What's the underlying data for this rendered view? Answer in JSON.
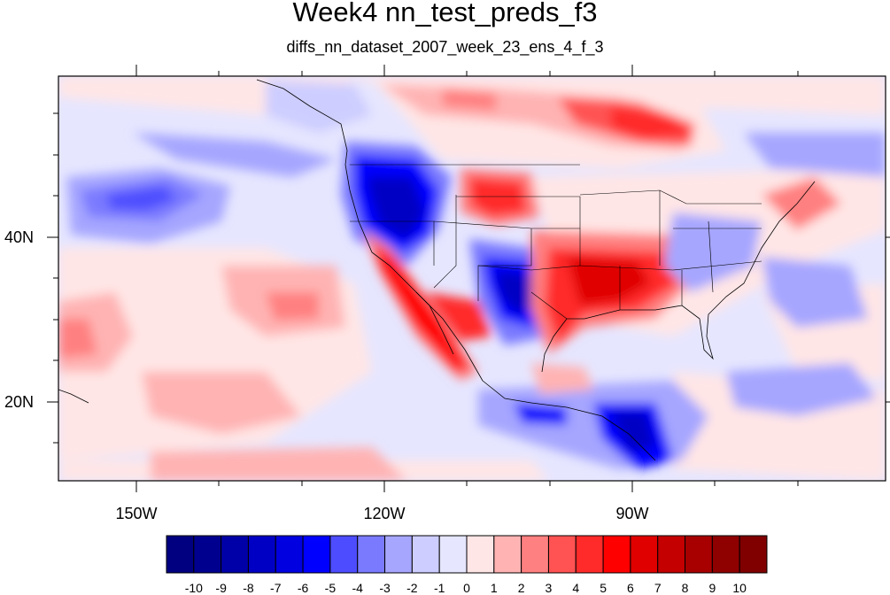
{
  "title": "Week4 nn_test_preds_f3",
  "subtitle": "diffs_nn_dataset_2007_week_23_ens_4_f_3",
  "map": {
    "lon_labels": [
      "150W",
      "120W",
      "90W"
    ],
    "lat_labels": [
      "40N",
      "20N"
    ],
    "lon_range": [
      -160,
      -60
    ],
    "lat_range": [
      10,
      60
    ]
  },
  "colorbar": {
    "labels": [
      "-10",
      "-9",
      "-8",
      "-7",
      "-6",
      "-5",
      "-4",
      "-3",
      "-2",
      "-1",
      "0",
      "1",
      "2",
      "3",
      "4",
      "5",
      "6",
      "7",
      "8",
      "9",
      "10"
    ],
    "colors": [
      "#000080",
      "#00008f",
      "#0000a8",
      "#0000c4",
      "#0000e0",
      "#0000ff",
      "#4d4dff",
      "#7a7aff",
      "#a6a6ff",
      "#cdcdff",
      "#e6e6ff",
      "#ffe6e6",
      "#ffb3b3",
      "#ff8080",
      "#ff5252",
      "#ff2a2a",
      "#ff0000",
      "#e00000",
      "#c40000",
      "#a80000",
      "#8f0000",
      "#800000"
    ]
  }
}
